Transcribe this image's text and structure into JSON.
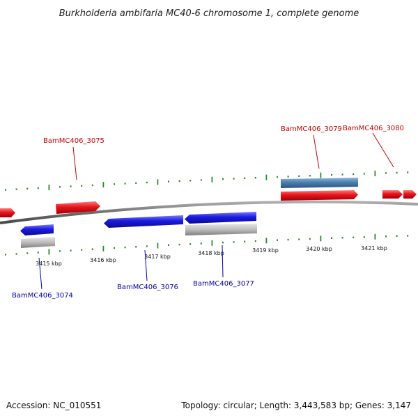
{
  "title": "Burkholderia ambifaria MC40-6 chromosome 1, complete genome",
  "footer": {
    "accession": "Accession: NC_010551",
    "stats": "Topology: circular; Length: 3,443,583 bp; Genes: 3,147"
  },
  "colors": {
    "forward_gene": "#e8141c",
    "reverse_gene": "#1a1ae0",
    "rna_gene": "#4a7fb0",
    "pseudo_gene": "#b4b4b4",
    "backbone": "#7a7a7a",
    "ticks": "#2a8a2a",
    "forward_label": "#cc0000",
    "reverse_label": "#0000aa"
  },
  "scale_labels": [
    "3415 kbp",
    "3416 kbp",
    "3417 kbp",
    "3418 kbp",
    "3419 kbp",
    "3420 kbp",
    "3421 kbp"
  ],
  "gene_labels": {
    "forward": [
      "BamMC406_3075",
      "BamMC406_3079",
      "BamMC406_3080"
    ],
    "reverse": [
      "BamMC406_3074",
      "BamMC406_3076",
      "BamMC406_3077"
    ]
  }
}
